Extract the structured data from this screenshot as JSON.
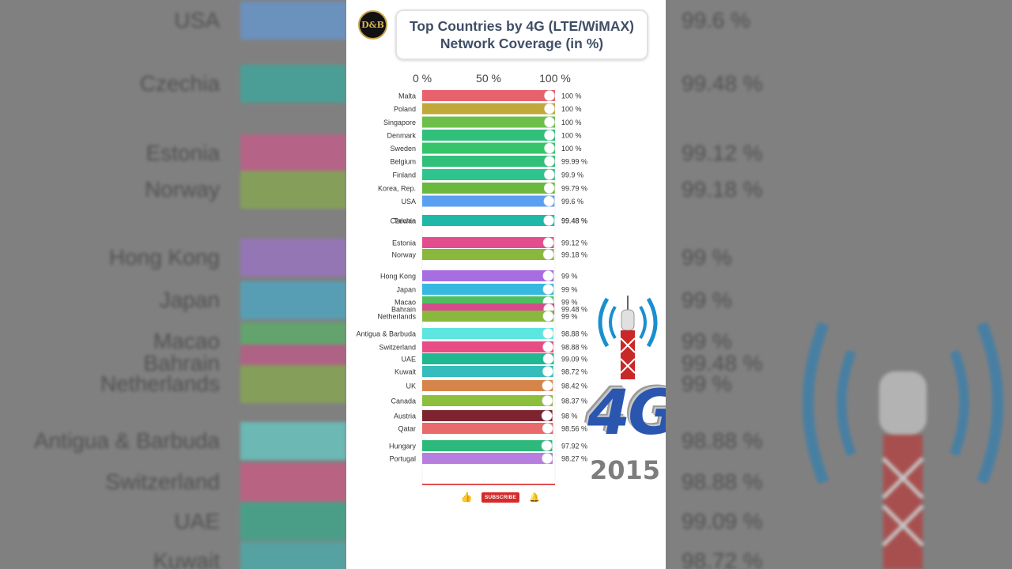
{
  "title_line1": "Top Countries by 4G (LTE/WiMAX)",
  "title_line2": "Network Coverage (in %)",
  "logo_text": "D&B",
  "year": "2015",
  "badge_4g": "4G",
  "subscribe_label": "SUBSCRIBE",
  "chart_data": {
    "type": "bar",
    "orientation": "horizontal",
    "xlim": [
      0,
      100
    ],
    "xticks": [
      "0 %",
      "50 %",
      "100 %"
    ],
    "unit": " %",
    "categories": [
      "Malta",
      "Poland",
      "Singapore",
      "Denmark",
      "Sweden",
      "Belgium",
      "Finland",
      "Korea, Rep.",
      "USA",
      "Taiwan",
      "Czechia",
      "Estonia",
      "Norway",
      "Hong Kong",
      "Japan",
      "Macao",
      "Bahrain",
      "Netherlands",
      "Antigua & Barbuda",
      "Switzerland",
      "UAE",
      "Kuwait",
      "UK",
      "Canada",
      "Austria",
      "Qatar",
      "Hungary",
      "Portugal"
    ],
    "values": [
      100,
      100,
      100,
      100,
      100,
      99.99,
      99.9,
      99.79,
      99.6,
      99.48,
      99.48,
      99.12,
      99.18,
      99,
      99,
      99,
      99.48,
      99,
      98.88,
      98.88,
      99.09,
      98.72,
      98.42,
      98.37,
      98,
      98.56,
      97.92,
      98.27
    ],
    "value_labels": [
      "100 %",
      "100 %",
      "100 %",
      "100 %",
      "100 %",
      "99.99 %",
      "99.9 %",
      "99.79 %",
      "99.6 %",
      "99.48 %",
      "99.48 %",
      "99.12 %",
      "99.18 %",
      "99 %",
      "99 %",
      "99 %",
      "99.48 %",
      "99 %",
      "98.88 %",
      "98.88 %",
      "99.09 %",
      "98.72 %",
      "98.42 %",
      "98.37 %",
      "98 %",
      "98.56 %",
      "97.92 %",
      "98.27 %"
    ],
    "colors": [
      "#e8626e",
      "#c0a83a",
      "#6cc04a",
      "#30c07a",
      "#36c46a",
      "#30c07a",
      "#2dc48e",
      "#6ab83e",
      "#5b9ff0",
      "#1fb8a8",
      "#1fb8a8",
      "#e24d8e",
      "#8ab83c",
      "#a66ee0",
      "#37b8e0",
      "#4cc060",
      "#d44c8a",
      "#8ab83c",
      "#5de6e0",
      "#e84c84",
      "#1fb890",
      "#35bcbc",
      "#d6854a",
      "#8cc03c",
      "#7d2430",
      "#e86a6a",
      "#2db87c",
      "#b77ee0"
    ]
  },
  "ghost_left": {
    "labels": [
      "USA",
      "Czechia",
      "Estonia",
      "Norway",
      "Hong Kong",
      "Japan",
      "Macao",
      "Bahrain",
      "Netherlands",
      "Antigua & Barbuda",
      "Switzerland",
      "UAE",
      "Kuwait"
    ]
  },
  "ghost_right": {
    "values": [
      "99.6 %",
      "99.48 %",
      "99.12 %",
      "99.18 %",
      "99 %",
      "99 %",
      "99 %",
      "99.48 %",
      "99 %",
      "98.88 %",
      "98.88 %",
      "99.09 %",
      "98.72 %"
    ]
  }
}
